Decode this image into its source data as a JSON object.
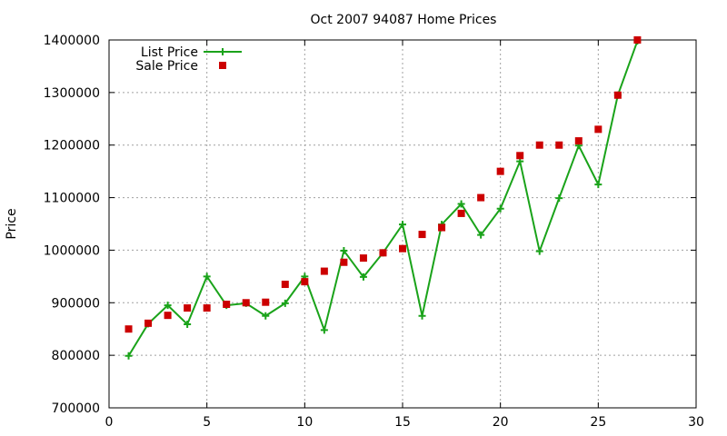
{
  "chart_data": {
    "type": "line",
    "title": "Oct 2007 94087 Home Prices",
    "xlabel": "",
    "ylabel": "Price",
    "xlim": [
      0,
      30
    ],
    "ylim": [
      700000,
      1400000
    ],
    "xticks": [
      0,
      5,
      10,
      15,
      20,
      25,
      30
    ],
    "yticks": [
      700000,
      800000,
      900000,
      1000000,
      1100000,
      1200000,
      1300000,
      1400000
    ],
    "grid": true,
    "legend_position": "top-left",
    "series": [
      {
        "name": "List Price",
        "style": "line+plus-markers",
        "color": "#1aa31a",
        "x": [
          1,
          2,
          3,
          4,
          5,
          6,
          7,
          8,
          9,
          10,
          11,
          12,
          13,
          14,
          15,
          16,
          17,
          18,
          19,
          20,
          21,
          22,
          23,
          24,
          25,
          26,
          27
        ],
        "y": [
          799000,
          860000,
          895000,
          859000,
          950000,
          895000,
          899000,
          875000,
          899000,
          950000,
          848000,
          999000,
          949000,
          995000,
          1049000,
          875000,
          1049000,
          1088000,
          1029000,
          1079000,
          1169000,
          998000,
          1099000,
          1199000,
          1125000,
          1295000,
          1398000
        ]
      },
      {
        "name": "Sale Price",
        "style": "square-markers",
        "color": "#cc0000",
        "x": [
          1,
          2,
          3,
          4,
          5,
          6,
          7,
          8,
          9,
          10,
          11,
          12,
          13,
          14,
          15,
          16,
          17,
          18,
          19,
          20,
          21,
          22,
          23,
          24,
          25,
          26,
          27
        ],
        "y": [
          850000,
          861000,
          876000,
          890000,
          890000,
          897000,
          900000,
          901000,
          935000,
          940000,
          960000,
          977000,
          985000,
          995000,
          1003000,
          1030000,
          1043000,
          1070000,
          1100000,
          1150000,
          1180000,
          1200000,
          1200000,
          1208000,
          1230000,
          1295000,
          1400000
        ]
      }
    ]
  }
}
